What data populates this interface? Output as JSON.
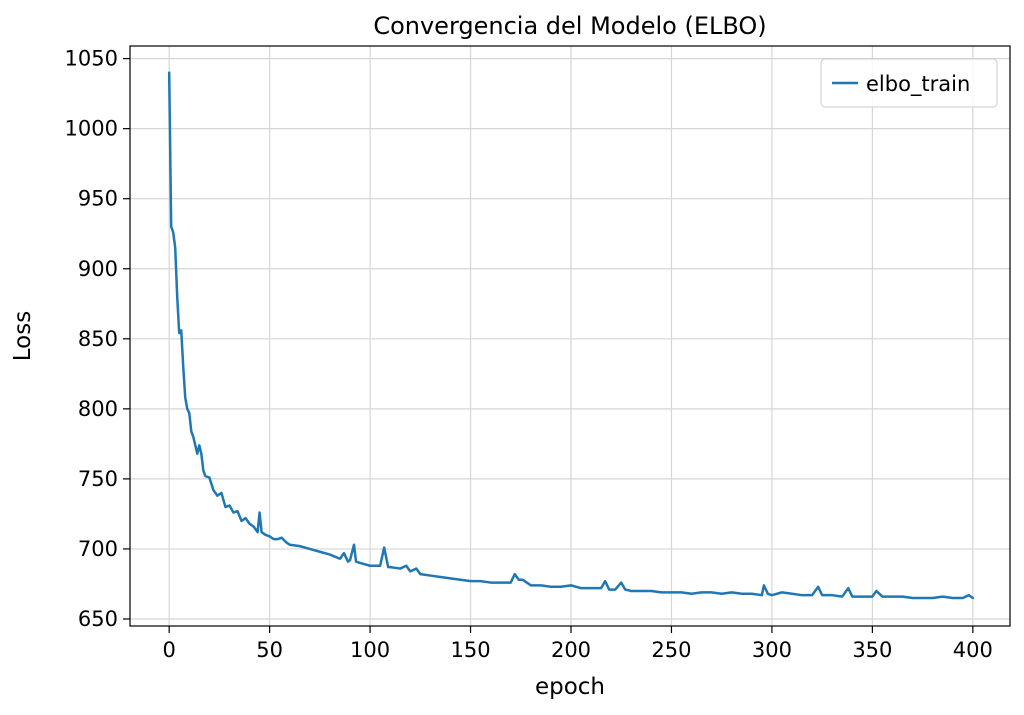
{
  "chart_data": {
    "type": "line",
    "title": "Convergencia del Modelo (ELBO)",
    "xlabel": "epoch",
    "ylabel": "Loss",
    "xlim": [
      -19.5,
      418.5
    ],
    "ylim": [
      645,
      1059
    ],
    "xticks": [
      0,
      50,
      100,
      150,
      200,
      250,
      300,
      350,
      400
    ],
    "yticks": [
      650,
      700,
      750,
      800,
      850,
      900,
      950,
      1000,
      1050
    ],
    "grid": true,
    "legend_position": "top-right",
    "series": [
      {
        "name": "elbo_train",
        "color": "#1f77b4",
        "x": [
          0,
          1,
          2,
          3,
          4,
          5,
          6,
          7,
          8,
          9,
          10,
          11,
          12,
          13,
          14,
          15,
          16,
          17,
          18,
          20,
          22,
          24,
          26,
          28,
          30,
          32,
          34,
          36,
          38,
          40,
          42,
          44,
          45,
          46,
          48,
          50,
          52,
          54,
          56,
          58,
          60,
          65,
          70,
          75,
          80,
          85,
          87,
          89,
          90,
          92,
          93,
          95,
          100,
          105,
          107,
          109,
          110,
          115,
          118,
          120,
          123,
          125,
          130,
          135,
          140,
          145,
          150,
          155,
          160,
          165,
          170,
          172,
          174,
          176,
          178,
          180,
          185,
          190,
          195,
          200,
          205,
          210,
          215,
          217,
          219,
          222,
          225,
          227,
          230,
          235,
          240,
          245,
          250,
          255,
          260,
          265,
          270,
          275,
          280,
          285,
          290,
          295,
          296,
          298,
          300,
          305,
          310,
          315,
          320,
          323,
          325,
          330,
          335,
          338,
          340,
          345,
          350,
          352,
          355,
          360,
          365,
          370,
          375,
          380,
          385,
          390,
          395,
          398,
          400
        ],
        "y": [
          1040,
          930,
          926,
          915,
          880,
          854,
          856,
          830,
          808,
          800,
          797,
          784,
          780,
          774,
          768,
          774,
          768,
          756,
          752,
          751,
          742,
          738,
          740,
          730,
          731,
          726,
          727,
          720,
          722,
          718,
          716,
          712,
          726,
          712,
          710,
          709,
          707,
          707,
          708,
          705,
          703,
          702,
          700,
          698,
          696,
          693,
          697,
          691,
          692,
          703,
          691,
          690,
          688,
          688,
          701,
          687,
          687,
          686,
          688,
          684,
          686,
          682,
          681,
          680,
          679,
          678,
          677,
          677,
          676,
          676,
          676,
          682,
          678,
          678,
          676,
          674,
          674,
          673,
          673,
          674,
          672,
          672,
          672,
          677,
          671,
          671,
          676,
          671,
          670,
          670,
          670,
          669,
          669,
          669,
          668,
          669,
          669,
          668,
          669,
          668,
          668,
          667,
          674,
          668,
          667,
          669,
          668,
          667,
          667,
          673,
          667,
          667,
          666,
          672,
          666,
          666,
          666,
          670,
          666,
          666,
          666,
          665,
          665,
          665,
          666,
          665,
          665,
          667,
          665
        ]
      }
    ]
  }
}
